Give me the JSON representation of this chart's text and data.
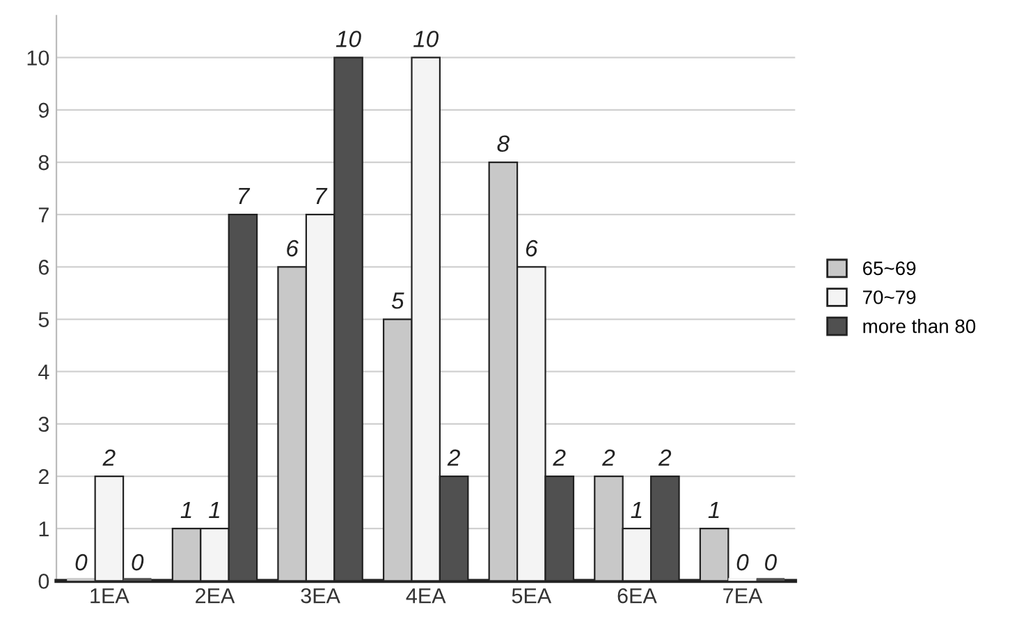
{
  "chart_data": {
    "type": "bar",
    "categories": [
      "1EA",
      "2EA",
      "3EA",
      "4EA",
      "5EA",
      "6EA",
      "7EA"
    ],
    "series": [
      {
        "name": "65~69",
        "color": "#c8c8c8",
        "values": [
          0,
          1,
          6,
          5,
          8,
          2,
          1
        ]
      },
      {
        "name": "70~79",
        "color": "#f4f4f4",
        "values": [
          2,
          1,
          7,
          10,
          6,
          1,
          0
        ]
      },
      {
        "name": "more than 80",
        "color": "#505050",
        "values": [
          0,
          7,
          10,
          2,
          2,
          2,
          0
        ]
      }
    ],
    "ylim": [
      0,
      10.8
    ],
    "yticks": [
      0,
      1,
      2,
      3,
      4,
      5,
      6,
      7,
      8,
      9,
      10
    ],
    "grid": "y",
    "legend": "right",
    "data_labels": true
  }
}
